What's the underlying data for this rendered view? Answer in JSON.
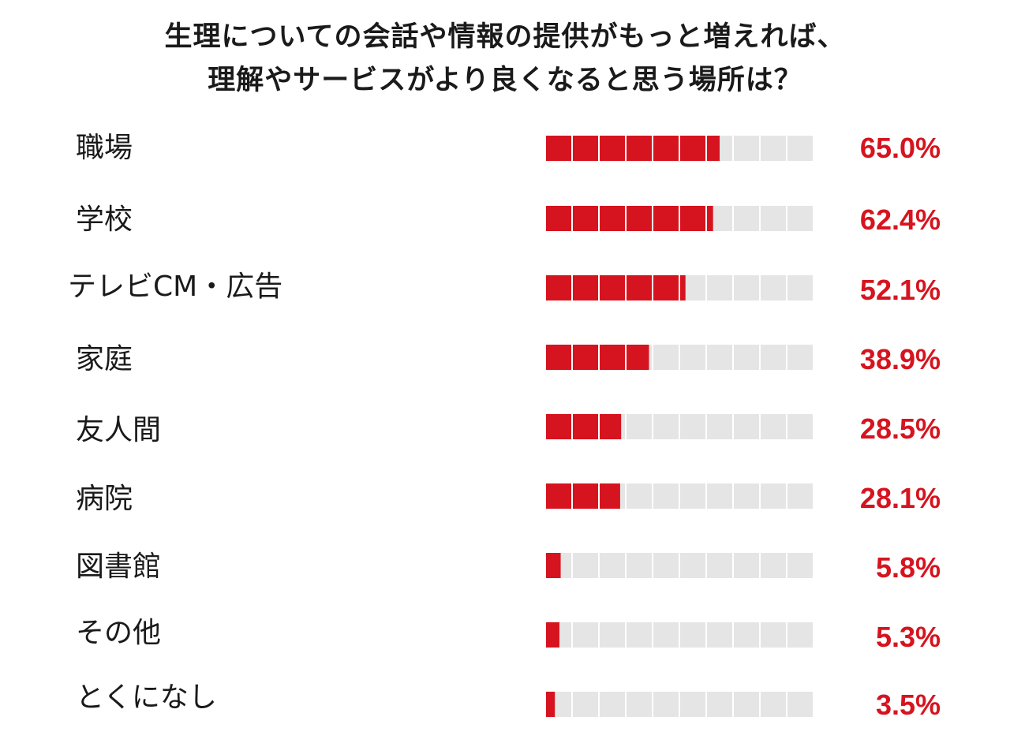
{
  "chart_data": {
    "type": "bar",
    "title_lines": [
      "生理についての会話や情報の提供がもっと増えれば、",
      "理解やサービスがより良くなると思う場所は？"
    ],
    "categories": [
      "職場",
      "学校",
      "テレビCM・広告",
      "家庭",
      "友人間",
      "病院",
      "図書館",
      "その他",
      "とくになし"
    ],
    "values": [
      65.0,
      62.4,
      52.1,
      38.9,
      28.5,
      28.1,
      5.8,
      5.3,
      3.5
    ],
    "value_labels": [
      "65.0%",
      "62.4%",
      "52.1%",
      "38.9%",
      "28.5%",
      "28.1%",
      "5.8%",
      "5.3%",
      "3.5%"
    ],
    "ylim": [
      0,
      100
    ],
    "segments": 10,
    "colors": {
      "filled": "#d6141f",
      "empty": "#e5e5e5",
      "value_text": "#d6141f"
    }
  }
}
